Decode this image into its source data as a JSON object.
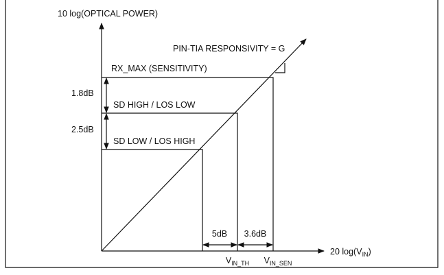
{
  "y_axis_label": "10 log(OPTICAL POWER)",
  "x_axis_label": {
    "text": "20 log(V",
    "sub": "IN",
    "end": ")"
  },
  "responsivity_label": "PIN-TIA RESPONSIVITY = G",
  "levels": [
    {
      "label": "RX_MAX (SENSITIVITY)"
    },
    {
      "label": "SD HIGH / LOS LOW"
    },
    {
      "label": "SD LOW / LOS HIGH"
    }
  ],
  "power_gaps": [
    "1.8dB",
    "2.5dB"
  ],
  "voltage_gaps": [
    "5dB",
    "3.6dB"
  ],
  "voltage_marks": [
    {
      "text": "V",
      "sub": "IN_TH"
    },
    {
      "text": "V",
      "sub": "IN_SEN"
    }
  ]
}
